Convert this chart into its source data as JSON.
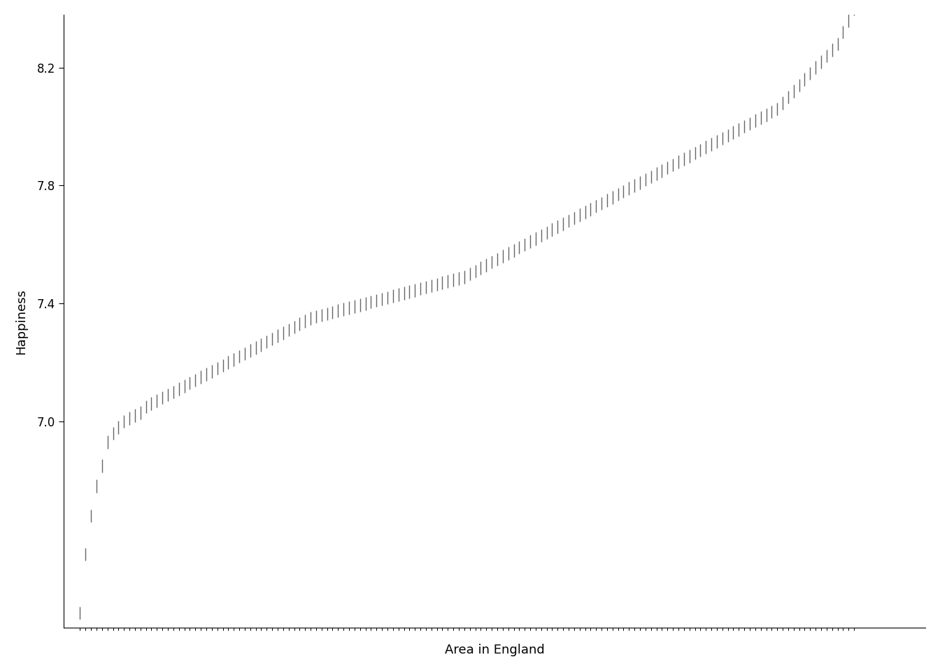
{
  "ylabel": "Happiness",
  "xlabel": "Area in England",
  "yticks": [
    7.0,
    7.4,
    7.8,
    8.2
  ],
  "y_min": 6.3,
  "y_max": 8.38,
  "x_min": -2,
  "x_max": 155,
  "line_color": "#666666",
  "background_color": "#ffffff",
  "tick_half": 0.022,
  "vline_lw": 1.0,
  "happiness_values": [
    6.35,
    6.55,
    6.68,
    6.78,
    6.85,
    6.93,
    6.96,
    6.98,
    7.0,
    7.01,
    7.02,
    7.03,
    7.05,
    7.06,
    7.07,
    7.08,
    7.09,
    7.1,
    7.11,
    7.12,
    7.13,
    7.14,
    7.15,
    7.16,
    7.17,
    7.18,
    7.19,
    7.2,
    7.21,
    7.22,
    7.23,
    7.24,
    7.25,
    7.26,
    7.27,
    7.28,
    7.29,
    7.3,
    7.31,
    7.32,
    7.33,
    7.34,
    7.35,
    7.355,
    7.36,
    7.365,
    7.37,
    7.375,
    7.38,
    7.385,
    7.39,
    7.395,
    7.4,
    7.405,
    7.41,
    7.415,
    7.42,
    7.425,
    7.43,
    7.435,
    7.44,
    7.445,
    7.45,
    7.455,
    7.46,
    7.465,
    7.47,
    7.475,
    7.48,
    7.485,
    7.49,
    7.5,
    7.51,
    7.52,
    7.53,
    7.54,
    7.55,
    7.56,
    7.57,
    7.58,
    7.59,
    7.6,
    7.61,
    7.62,
    7.63,
    7.64,
    7.65,
    7.66,
    7.67,
    7.68,
    7.69,
    7.7,
    7.71,
    7.72,
    7.73,
    7.74,
    7.75,
    7.76,
    7.77,
    7.78,
    7.79,
    7.8,
    7.81,
    7.82,
    7.83,
    7.84,
    7.85,
    7.86,
    7.87,
    7.88,
    7.89,
    7.9,
    7.91,
    7.92,
    7.93,
    7.94,
    7.95,
    7.96,
    7.97,
    7.98,
    7.99,
    8.0,
    8.01,
    8.02,
    8.03,
    8.04,
    8.05,
    8.06,
    8.08,
    8.1,
    8.12,
    8.14,
    8.16,
    8.18,
    8.2,
    8.22,
    8.24,
    8.26,
    8.28,
    8.32,
    8.36,
    8.4
  ]
}
